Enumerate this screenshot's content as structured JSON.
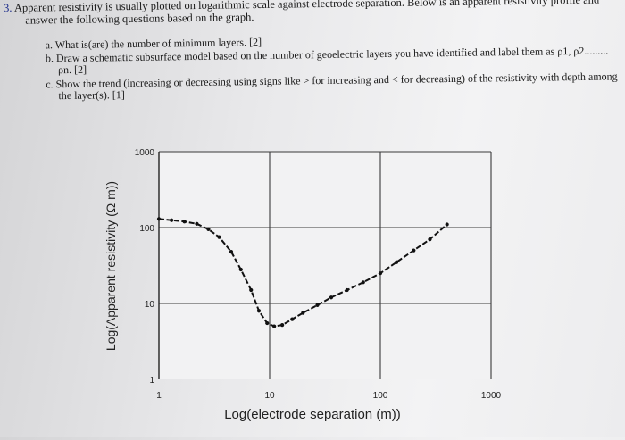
{
  "question": {
    "number": "3.",
    "intro_line1": "Apparent resistivity is usually plotted on logarithmic scale against electrode separation. Below is an apparent resistivity profile and",
    "intro_line2": "answer the following questions based on the graph.",
    "a": "a. What is(are) the number of minimum layers. [2]",
    "b_line1": "b. Draw a schematic subsurface model based on the number of geoelectric layers you have identified and label them as ρ1, ρ2.........",
    "b_line2": "ρn. [2]",
    "c_line1": "c. Show the trend (increasing or decreasing using signs like > for increasing and < for decreasing) of the resistivity with depth among",
    "c_line2": "the layer(s). [1]"
  },
  "chart_data": {
    "type": "line",
    "xlabel": "Log(electrode separation (m))",
    "ylabel": "Log(Apparent resistivity (Ω m))",
    "x_scale": "log",
    "y_scale": "log",
    "xlim": [
      1,
      1000
    ],
    "ylim": [
      1,
      1000
    ],
    "x_ticks": [
      "1",
      "10",
      "100",
      "1000"
    ],
    "y_ticks": [
      "1000",
      "100",
      "10",
      "1"
    ],
    "grid": true,
    "line_color": "#111111",
    "series": [
      {
        "x": [
          1.0,
          1.3,
          1.7,
          2.2,
          2.8,
          3.5,
          4.5,
          5.5,
          6.8,
          8.0,
          9.5,
          11,
          13,
          16,
          20,
          27,
          36,
          50,
          70,
          100,
          140,
          200,
          280,
          400
        ],
        "y": [
          130,
          125,
          120,
          112,
          95,
          75,
          48,
          28,
          15,
          8,
          5.5,
          5.0,
          5.2,
          6.2,
          7.5,
          9.5,
          12,
          15,
          19,
          25,
          35,
          50,
          70,
          110
        ]
      }
    ]
  }
}
